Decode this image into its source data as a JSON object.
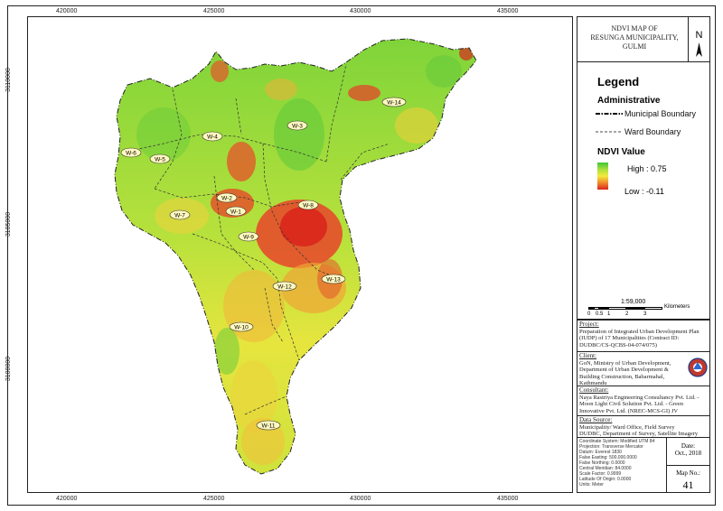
{
  "map": {
    "x_ticks": [
      "420000",
      "425000",
      "430000",
      "435000"
    ],
    "y_ticks": [
      "3110000",
      "3105000",
      "3100000"
    ],
    "wards": [
      "W-1",
      "W-2",
      "W-3",
      "W-4",
      "W-5",
      "W-6",
      "W-7",
      "W-8",
      "W-9",
      "W-10",
      "W-11",
      "W-12",
      "W-13",
      "W-14"
    ]
  },
  "title": {
    "line1": "NDVI MAP OF",
    "line2": "RESUNGA MUNICIPALITY,",
    "line3": "GULMI",
    "north": "N"
  },
  "legend": {
    "title": "Legend",
    "admin_heading": "Administrative",
    "municipal_boundary": "Municipal Boundary",
    "ward_boundary": "Ward Boundary",
    "ndvi_heading": "NDVI Value",
    "high": "High : 0.75",
    "low": "Low : -0.11",
    "colors": {
      "high": "#3ec63a",
      "mid": "#f3ea3d",
      "low": "#d9261c"
    }
  },
  "scale": {
    "ratio": "1:59,000",
    "unit": "Kilometers",
    "labels": [
      "0",
      "0.5",
      "1",
      "2",
      "3"
    ]
  },
  "project": {
    "heading": "Project:",
    "text": "Preparation of Integrated Urban Development Plan (IUDP) of 17 Municipalities (Contract ID: DUDBC/CS-QCBS-04-074/075)"
  },
  "client": {
    "heading": "Client:",
    "text": "GoN, Ministry of Urban Development, Department of Urban Development & Building Construction, Babarmahal, Kathmandu"
  },
  "consultant": {
    "heading": "Consultant:",
    "text": "Naya Rastriya Engineering Consultancy Pvt. Ltd. - Moon Light Civil Solution Pvt. Ltd. - Green Innovative Pvt. Ltd. (NREC-MCS-GI) JV"
  },
  "source": {
    "heading": "Data Source:",
    "line1": "Municipality/ Ward Office, Field Survey",
    "line2": "DUDBC, Department of Survey, Satellite Imagery"
  },
  "coords": [
    "Coordinate System: Modified UTM 84",
    "Projection: Transverse Mercator",
    "Datum: Everest 1830",
    "False Easting: 500,000.0000",
    "False Northing: 0.0000",
    "Central Meridian: 84.0000",
    "Scale Factor: 0.9999",
    "Latitude Of Origin: 0.0000",
    "Units: Meter"
  ],
  "date": {
    "label": "Date:",
    "value": "Oct., 2018"
  },
  "map_no": {
    "label": "Map No.:",
    "value": "41"
  }
}
